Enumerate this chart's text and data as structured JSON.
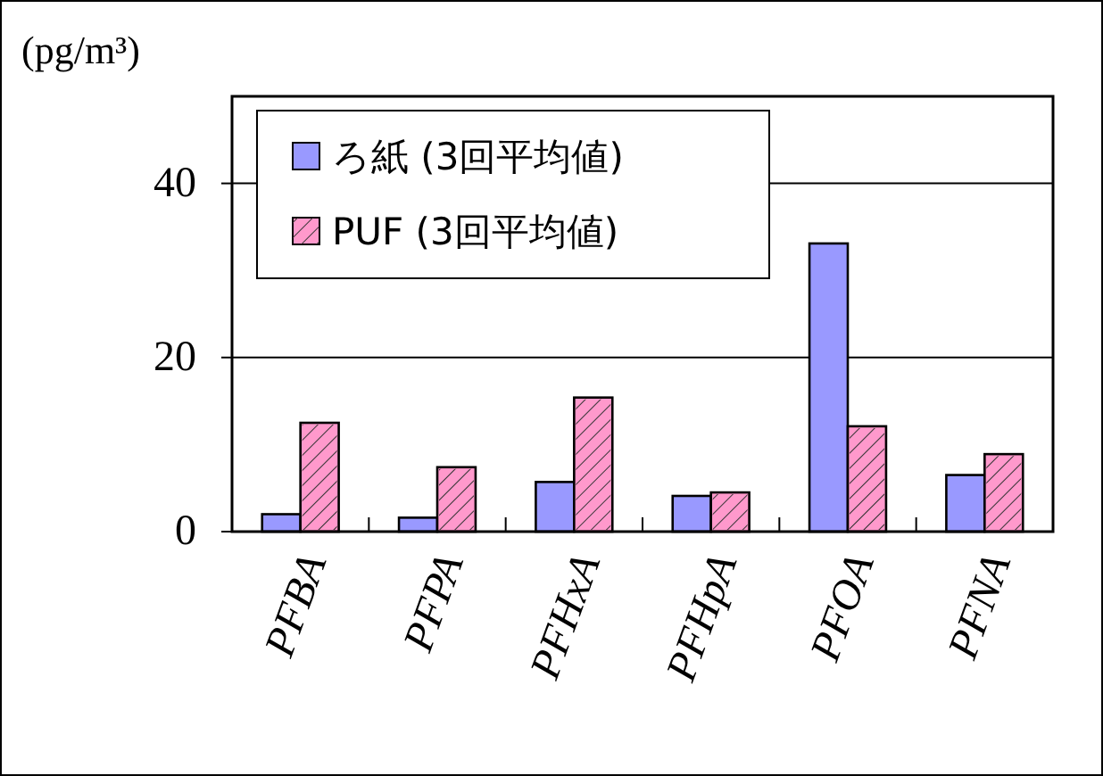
{
  "chart_data": {
    "type": "bar",
    "ylabel": "(pg/m³)",
    "categories": [
      "PFBA",
      "PFPA",
      "PFHxA",
      "PFHpA",
      "PFOA",
      "PFNA"
    ],
    "series": [
      {
        "name": "ろ紙 (3回平均値)",
        "color": "#9999ff",
        "values": [
          2.0,
          1.6,
          5.7,
          4.1,
          33.1,
          6.5
        ]
      },
      {
        "name": "PUF (3回平均値)",
        "color": "#ff99cc",
        "values": [
          12.5,
          7.4,
          15.4,
          4.5,
          12.1,
          8.9
        ]
      }
    ],
    "ylim": [
      0,
      50
    ],
    "yticks": [
      0,
      20,
      40
    ],
    "grid": "y",
    "legend": "top left"
  }
}
